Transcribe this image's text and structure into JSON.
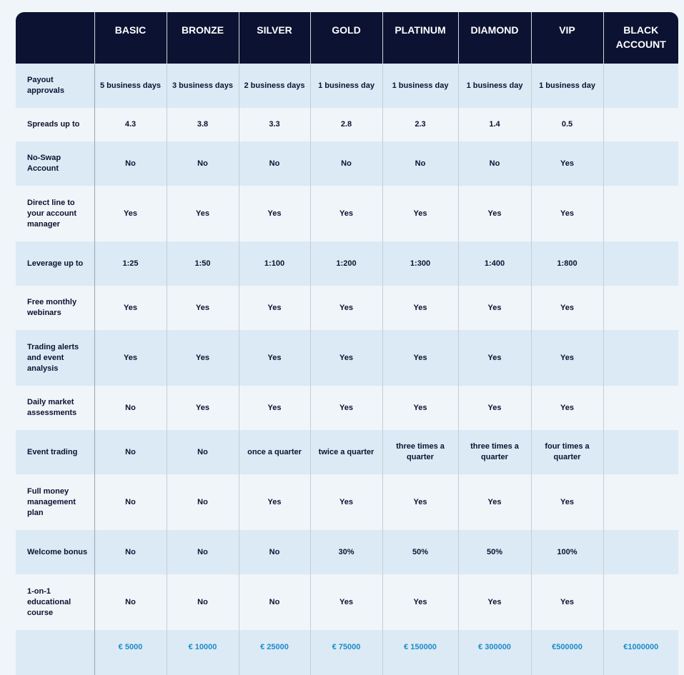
{
  "tiers": [
    "BASIC",
    "BRONZE",
    "SILVER",
    "GOLD",
    "PLATINUM",
    "DIAMOND",
    "VIP",
    "BLACK ACCOUNT"
  ],
  "rows": [
    {
      "label": "Payout approvals",
      "values": [
        "5 business days",
        "3 business days",
        "2 business days",
        "1 business day",
        "1 business day",
        "1 business day",
        "1 business day",
        ""
      ]
    },
    {
      "label": "Spreads up to",
      "values": [
        "4.3",
        "3.8",
        "3.3",
        "2.8",
        "2.3",
        "1.4",
        "0.5",
        ""
      ]
    },
    {
      "label": "No-Swap Account",
      "values": [
        "No",
        "No",
        "No",
        "No",
        "No",
        "No",
        "Yes",
        ""
      ]
    },
    {
      "label": "Direct line to your account manager",
      "values": [
        "Yes",
        "Yes",
        "Yes",
        "Yes",
        "Yes",
        "Yes",
        "Yes",
        ""
      ]
    },
    {
      "label": "Leverage up to",
      "values": [
        "1:25",
        "1:50",
        "1:100",
        "1:200",
        "1:300",
        "1:400",
        "1:800",
        ""
      ]
    },
    {
      "label": "Free monthly webinars",
      "values": [
        "Yes",
        "Yes",
        "Yes",
        "Yes",
        "Yes",
        "Yes",
        "Yes",
        ""
      ]
    },
    {
      "label": "Trading alerts and event analysis",
      "values": [
        "Yes",
        "Yes",
        "Yes",
        "Yes",
        "Yes",
        "Yes",
        "Yes",
        ""
      ]
    },
    {
      "label": "Daily market assessments",
      "values": [
        "No",
        "Yes",
        "Yes",
        "Yes",
        "Yes",
        "Yes",
        "Yes",
        ""
      ]
    },
    {
      "label": "Event trading",
      "values": [
        "No",
        "No",
        "once a quarter",
        "twice a quarter",
        "three times a quarter",
        "three times a quarter",
        "four times a quarter",
        ""
      ]
    },
    {
      "label": "Full money management plan",
      "values": [
        "No",
        "No",
        "Yes",
        "Yes",
        "Yes",
        "Yes",
        "Yes",
        ""
      ]
    },
    {
      "label": "Welcome bonus",
      "values": [
        "No",
        "No",
        "No",
        "30%",
        "50%",
        "50%",
        "100%",
        ""
      ]
    },
    {
      "label": "1-on-1 educational course",
      "values": [
        "No",
        "No",
        "No",
        "Yes",
        "Yes",
        "Yes",
        "Yes",
        ""
      ]
    }
  ],
  "prices": [
    "€ 5000",
    "€ 10000",
    "€ 25000",
    "€ 75000",
    "€ 150000",
    "€ 300000",
    "€500000",
    "€1000000"
  ],
  "colors": {
    "header_bg": "#0c1231",
    "row_blue": "#dbeaf5",
    "row_white": "#f0f5f9",
    "price_text": "#1e8ac9"
  }
}
